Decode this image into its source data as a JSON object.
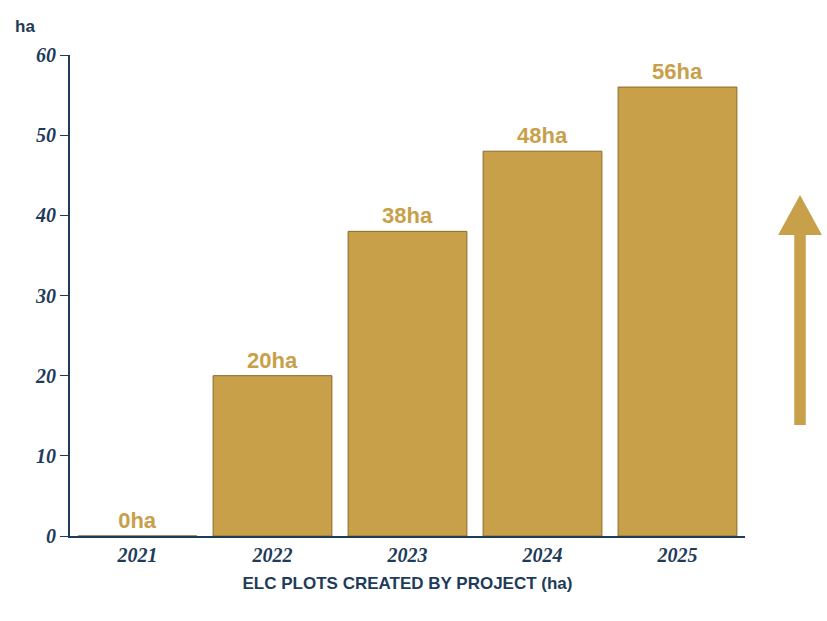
{
  "chart_data": {
    "type": "bar",
    "ylabel": "ha",
    "xlabel": "ELC PLOTS CREATED BY PROJECT (ha)",
    "categories": [
      "2021",
      "2022",
      "2023",
      "2024",
      "2025"
    ],
    "values": [
      0,
      20,
      38,
      48,
      56
    ],
    "value_labels": [
      "0ha",
      "20ha",
      "38ha",
      "48ha",
      "56ha"
    ],
    "color": "#c9a04a",
    "ylim": [
      0,
      60
    ],
    "yticks": [
      0,
      10,
      20,
      30,
      40,
      50,
      60
    ],
    "grid": false,
    "data_labels": true
  }
}
